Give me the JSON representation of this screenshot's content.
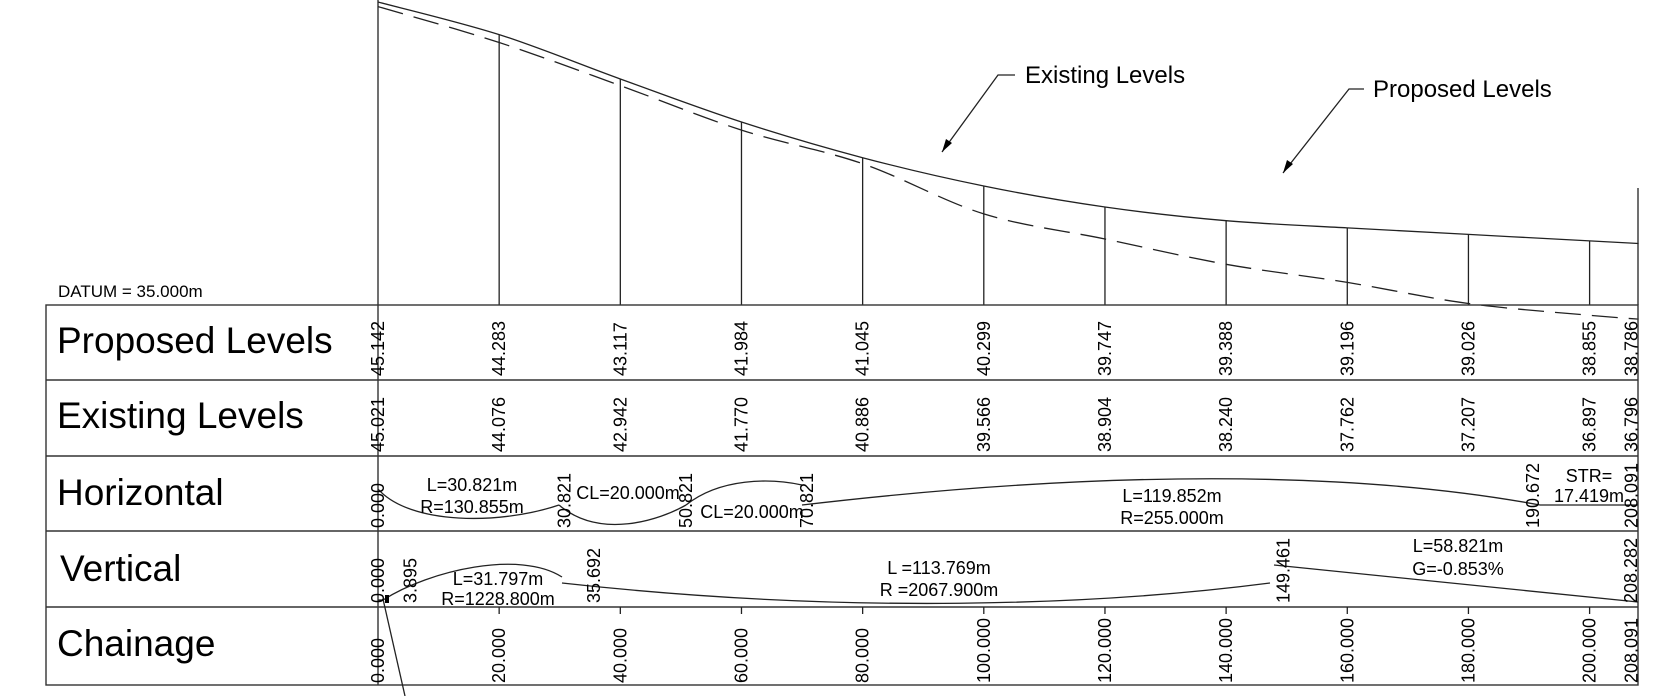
{
  "datum": "DATUM = 35.000m",
  "callouts": {
    "existing": "Existing Levels",
    "proposed": "Proposed Levels"
  },
  "rows": {
    "proposed": "Proposed Levels",
    "existing": "Existing Levels",
    "horizontal": "Horizontal",
    "vertical": "Vertical",
    "chainage": "Chainage"
  },
  "chart_data": {
    "type": "line",
    "chainages": [
      0,
      20,
      40,
      60,
      80,
      100,
      120,
      140,
      160,
      180,
      200,
      208.091
    ],
    "chainage_labels": [
      "0.000",
      "20.000",
      "40.000",
      "60.000",
      "80.000",
      "100.000",
      "120.000",
      "140.000",
      "160.000",
      "180.000",
      "200.000",
      "208.091"
    ],
    "proposed_levels": [
      "45.142",
      "44.283",
      "43.117",
      "41.984",
      "41.045",
      "40.299",
      "39.747",
      "39.388",
      "39.196",
      "39.026",
      "38.855",
      "38.786"
    ],
    "existing_levels": [
      "45.021",
      "44.076",
      "42.942",
      "41.770",
      "40.886",
      "39.566",
      "38.904",
      "38.240",
      "37.762",
      "37.207",
      "36.897",
      "36.796"
    ],
    "series": [
      {
        "name": "Proposed Levels",
        "values": [
          45.142,
          44.283,
          43.117,
          41.984,
          41.045,
          40.299,
          39.747,
          39.388,
          39.196,
          39.026,
          38.855,
          38.786
        ]
      },
      {
        "name": "Existing Levels",
        "values": [
          45.021,
          44.076,
          42.942,
          41.77,
          40.886,
          39.566,
          38.904,
          38.24,
          37.762,
          37.207,
          36.897,
          36.796
        ]
      }
    ],
    "horizontal": {
      "station_labels": [
        "0.000",
        "30.821",
        "50.821",
        "70.821",
        "190.672",
        "208.091"
      ],
      "station_values": [
        0,
        30.821,
        50.821,
        70.821,
        190.672,
        208.091
      ],
      "curve1": {
        "l": "L=30.821m",
        "r": "R=130.855m"
      },
      "spiral1": "CL=20.000m",
      "spiral2": "CL=20.000m",
      "curve2": {
        "l": "L=119.852m",
        "r": "R=255.000m"
      },
      "straight": {
        "l1": "STR=",
        "l2": "17.419m"
      }
    },
    "vertical": {
      "station_labels": [
        "0.000",
        "3.895",
        "35.692",
        "149.461",
        "208.282"
      ],
      "station_values": [
        0,
        3.895,
        35.692,
        149.461,
        208.282
      ],
      "curve1": {
        "l": "L=31.797m",
        "r": "R=1228.800m"
      },
      "curve2": {
        "l": "L =113.769m",
        "r": "R =2067.900m"
      },
      "grade": {
        "l": "L=58.821m",
        "g": "G=-0.853%"
      }
    }
  }
}
